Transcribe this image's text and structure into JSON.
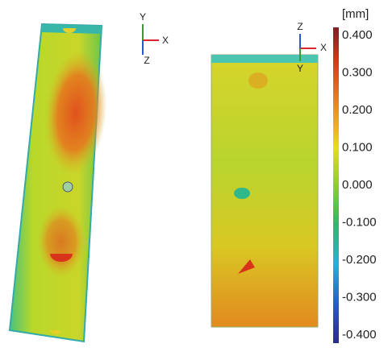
{
  "colorbar": {
    "unit": "[mm]",
    "ticks": [
      "0.400",
      "0.300",
      "0.200",
      "0.100",
      "0.000",
      "-0.100",
      "-0.200",
      "-0.300",
      "-0.400"
    ]
  },
  "triad_left": {
    "up": "Y",
    "right": "X",
    "down": "Z"
  },
  "triad_right": {
    "up": "Z",
    "right": "X",
    "down": "Y"
  }
}
